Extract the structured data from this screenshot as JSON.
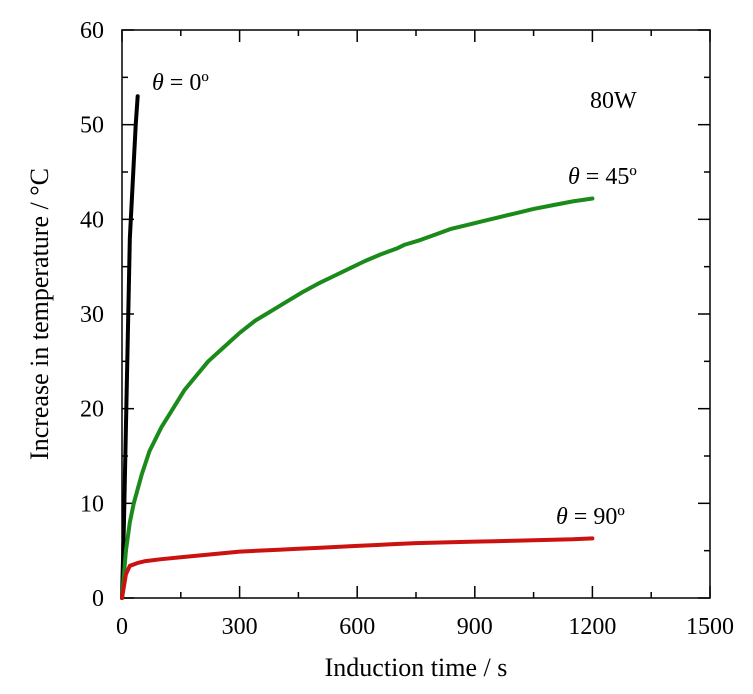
{
  "chart_data": {
    "type": "line",
    "title": "",
    "xlabel": "Induction time / s",
    "ylabel": "Increase in temperature / °C",
    "xlim": [
      0,
      1500
    ],
    "ylim": [
      0,
      60
    ],
    "x_ticks": [
      0,
      300,
      600,
      900,
      1200,
      1500
    ],
    "y_ticks": [
      0,
      10,
      20,
      30,
      40,
      50,
      60
    ],
    "x_tick_labels": [
      "0",
      "300",
      "600",
      "900",
      "1200",
      "1500"
    ],
    "y_tick_labels": [
      "0",
      "10",
      "20",
      "30",
      "40",
      "50",
      "60"
    ],
    "grid": false,
    "annotations": {
      "power": "80W",
      "theta_symbol": "θ",
      "theta0": " = 0º",
      "theta45": " = 45º",
      "theta90": " =  90º"
    },
    "series": [
      {
        "color": "#000000",
        "x": [
          0,
          5,
          10,
          15,
          20,
          25,
          30,
          35,
          40
        ],
        "y": [
          0,
          8,
          18,
          28,
          38,
          42,
          46,
          50,
          53
        ]
      },
      {
        "color": "#1a8a1a",
        "x": [
          0,
          10,
          20,
          30,
          50,
          70,
          100,
          130,
          160,
          190,
          220,
          260,
          300,
          340,
          380,
          420,
          460,
          500,
          540,
          580,
          620,
          660,
          700,
          720,
          760,
          800,
          840,
          880,
          920,
          960,
          1000,
          1050,
          1100,
          1150,
          1200
        ],
        "y": [
          0,
          5,
          8,
          10,
          13,
          15.5,
          18,
          20,
          22,
          23.5,
          25,
          26.5,
          28,
          29.3,
          30.3,
          31.3,
          32.3,
          33.2,
          34,
          34.8,
          35.6,
          36.3,
          36.9,
          37.3,
          37.8,
          38.4,
          39,
          39.4,
          39.8,
          40.2,
          40.6,
          41.1,
          41.5,
          41.9,
          42.2
        ]
      },
      {
        "color": "#cc1111",
        "x": [
          0,
          10,
          20,
          40,
          60,
          100,
          150,
          200,
          250,
          300,
          350,
          400,
          450,
          500,
          550,
          600,
          650,
          700,
          750,
          800,
          850,
          900,
          950,
          1000,
          1050,
          1100,
          1150,
          1200
        ],
        "y": [
          0,
          2.5,
          3.4,
          3.7,
          3.9,
          4.1,
          4.3,
          4.5,
          4.7,
          4.9,
          5.0,
          5.1,
          5.2,
          5.3,
          5.4,
          5.5,
          5.6,
          5.7,
          5.8,
          5.85,
          5.9,
          5.95,
          6.0,
          6.05,
          6.1,
          6.15,
          6.2,
          6.3
        ]
      }
    ]
  }
}
